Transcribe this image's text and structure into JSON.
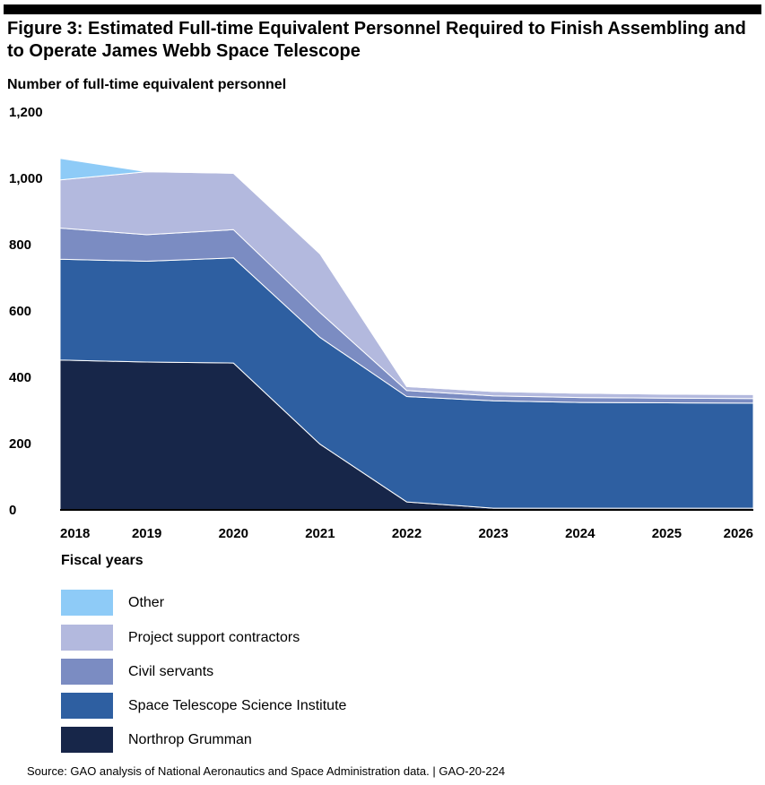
{
  "title": "Figure 3: Estimated Full-time Equivalent Personnel Required to Finish Assembling and to Operate James Webb Space Telescope",
  "source": "Source: GAO analysis of National Aeronautics and Space Administration data.  |  GAO-20-224",
  "chart_data": {
    "type": "area",
    "stacked": true,
    "ylabel": "Number of full-time equivalent personnel",
    "xlabel": "Fiscal years",
    "ylim": [
      0,
      1200
    ],
    "yticks": [
      0,
      200,
      400,
      600,
      800,
      1000,
      1200
    ],
    "ytick_labels": [
      "0",
      "200",
      "400",
      "600",
      "800",
      "1,000",
      "1,200"
    ],
    "categories": [
      "2018",
      "2019",
      "2020",
      "2021",
      "2022",
      "2023",
      "2024",
      "2025",
      "2026"
    ],
    "series": [
      {
        "name": "Northrop Grumman",
        "color": "#172649",
        "values": [
          452,
          446,
          443,
          198,
          24,
          5,
          5,
          5,
          5
        ]
      },
      {
        "name": "Space Telescope Science Institute",
        "color": "#2e5fa1",
        "values": [
          304,
          304,
          317,
          322,
          318,
          324,
          319,
          318,
          317
        ]
      },
      {
        "name": "Civil servants",
        "color": "#7b8cc2",
        "values": [
          94,
          80,
          85,
          75,
          18,
          15,
          15,
          14,
          14
        ]
      },
      {
        "name": "Project support contractors",
        "color": "#b3b9de",
        "values": [
          145,
          190,
          170,
          177,
          12,
          13,
          13,
          12,
          12
        ]
      },
      {
        "name": "Other",
        "color": "#8ecbf7",
        "values": [
          65,
          0,
          0,
          0,
          0,
          0,
          0,
          0,
          0
        ]
      }
    ],
    "legend": {
      "placement": "bottom",
      "entries": [
        {
          "name": "Other",
          "color": "#8ecbf7"
        },
        {
          "name": "Project support contractors",
          "color": "#b3b9de"
        },
        {
          "name": "Civil servants",
          "color": "#7b8cc2"
        },
        {
          "name": "Space Telescope Science Institute",
          "color": "#2e5fa1"
        },
        {
          "name": "Northrop Grumman",
          "color": "#172649"
        }
      ]
    },
    "grid": false
  }
}
